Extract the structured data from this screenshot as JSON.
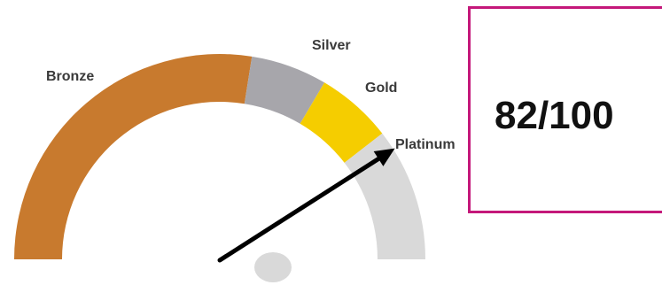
{
  "chart_data": {
    "type": "gauge",
    "title": "",
    "score": 82,
    "max": 100,
    "bands": [
      {
        "name": "Bronze",
        "from": 0,
        "to": 55,
        "color": "#c87a2e"
      },
      {
        "name": "Silver",
        "from": 55,
        "to": 67,
        "color": "#a7a6ab"
      },
      {
        "name": "Gold",
        "from": 67,
        "to": 79,
        "color": "#f5cd00"
      },
      {
        "name": "Platinum",
        "from": 79,
        "to": 100,
        "color": "#d9d9d9"
      }
    ],
    "needle_color": "#000000",
    "hub_color": "#d9d9d9"
  },
  "score_display": {
    "text": "82/100",
    "border_color": "#c4187a"
  }
}
